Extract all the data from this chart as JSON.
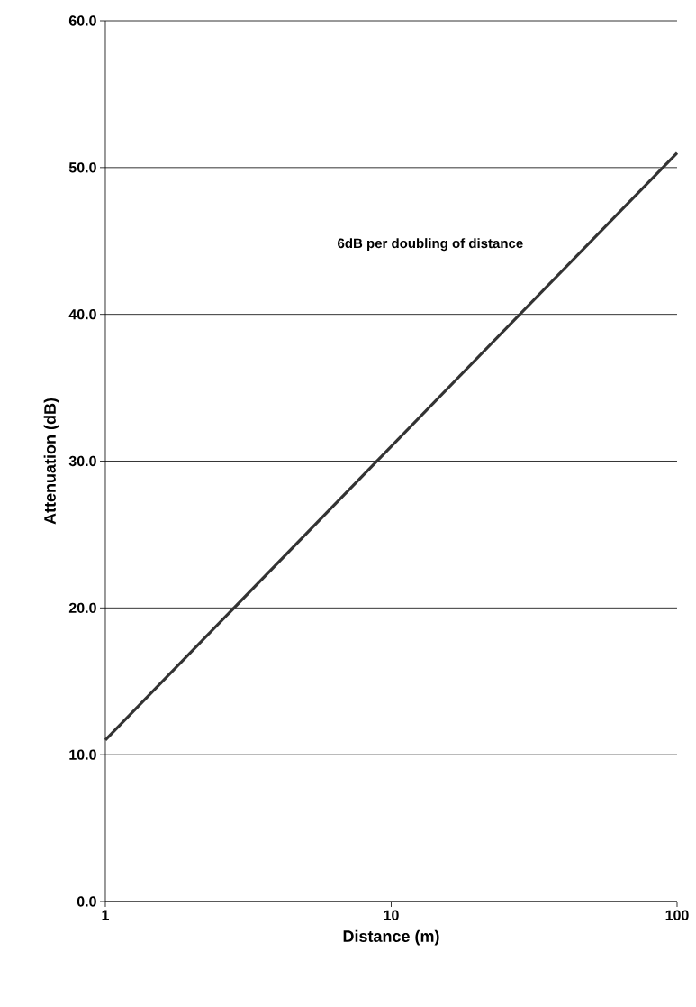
{
  "chart_data": {
    "type": "line",
    "xlabel": "Distance (m)",
    "ylabel": "Attenuation (dB)",
    "x": [
      1,
      10,
      100
    ],
    "values": [
      11,
      31,
      51
    ],
    "color": "#333333",
    "log": "x",
    "xlim": [
      1,
      100
    ],
    "ylim": [
      0,
      60
    ],
    "xticks": [
      1,
      10,
      100
    ],
    "yticks": [
      {
        "value": 0,
        "label": "0.0"
      },
      {
        "value": 10,
        "label": "10.0"
      },
      {
        "value": 20,
        "label": "20.0"
      },
      {
        "value": 30,
        "label": "30.0"
      },
      {
        "value": 40,
        "label": "40.0"
      },
      {
        "value": 50,
        "label": "50.0"
      },
      {
        "value": 60,
        "label": "60.0"
      }
    ],
    "grid": "y",
    "annotations": [
      "6dB per doubling of distance"
    ]
  }
}
